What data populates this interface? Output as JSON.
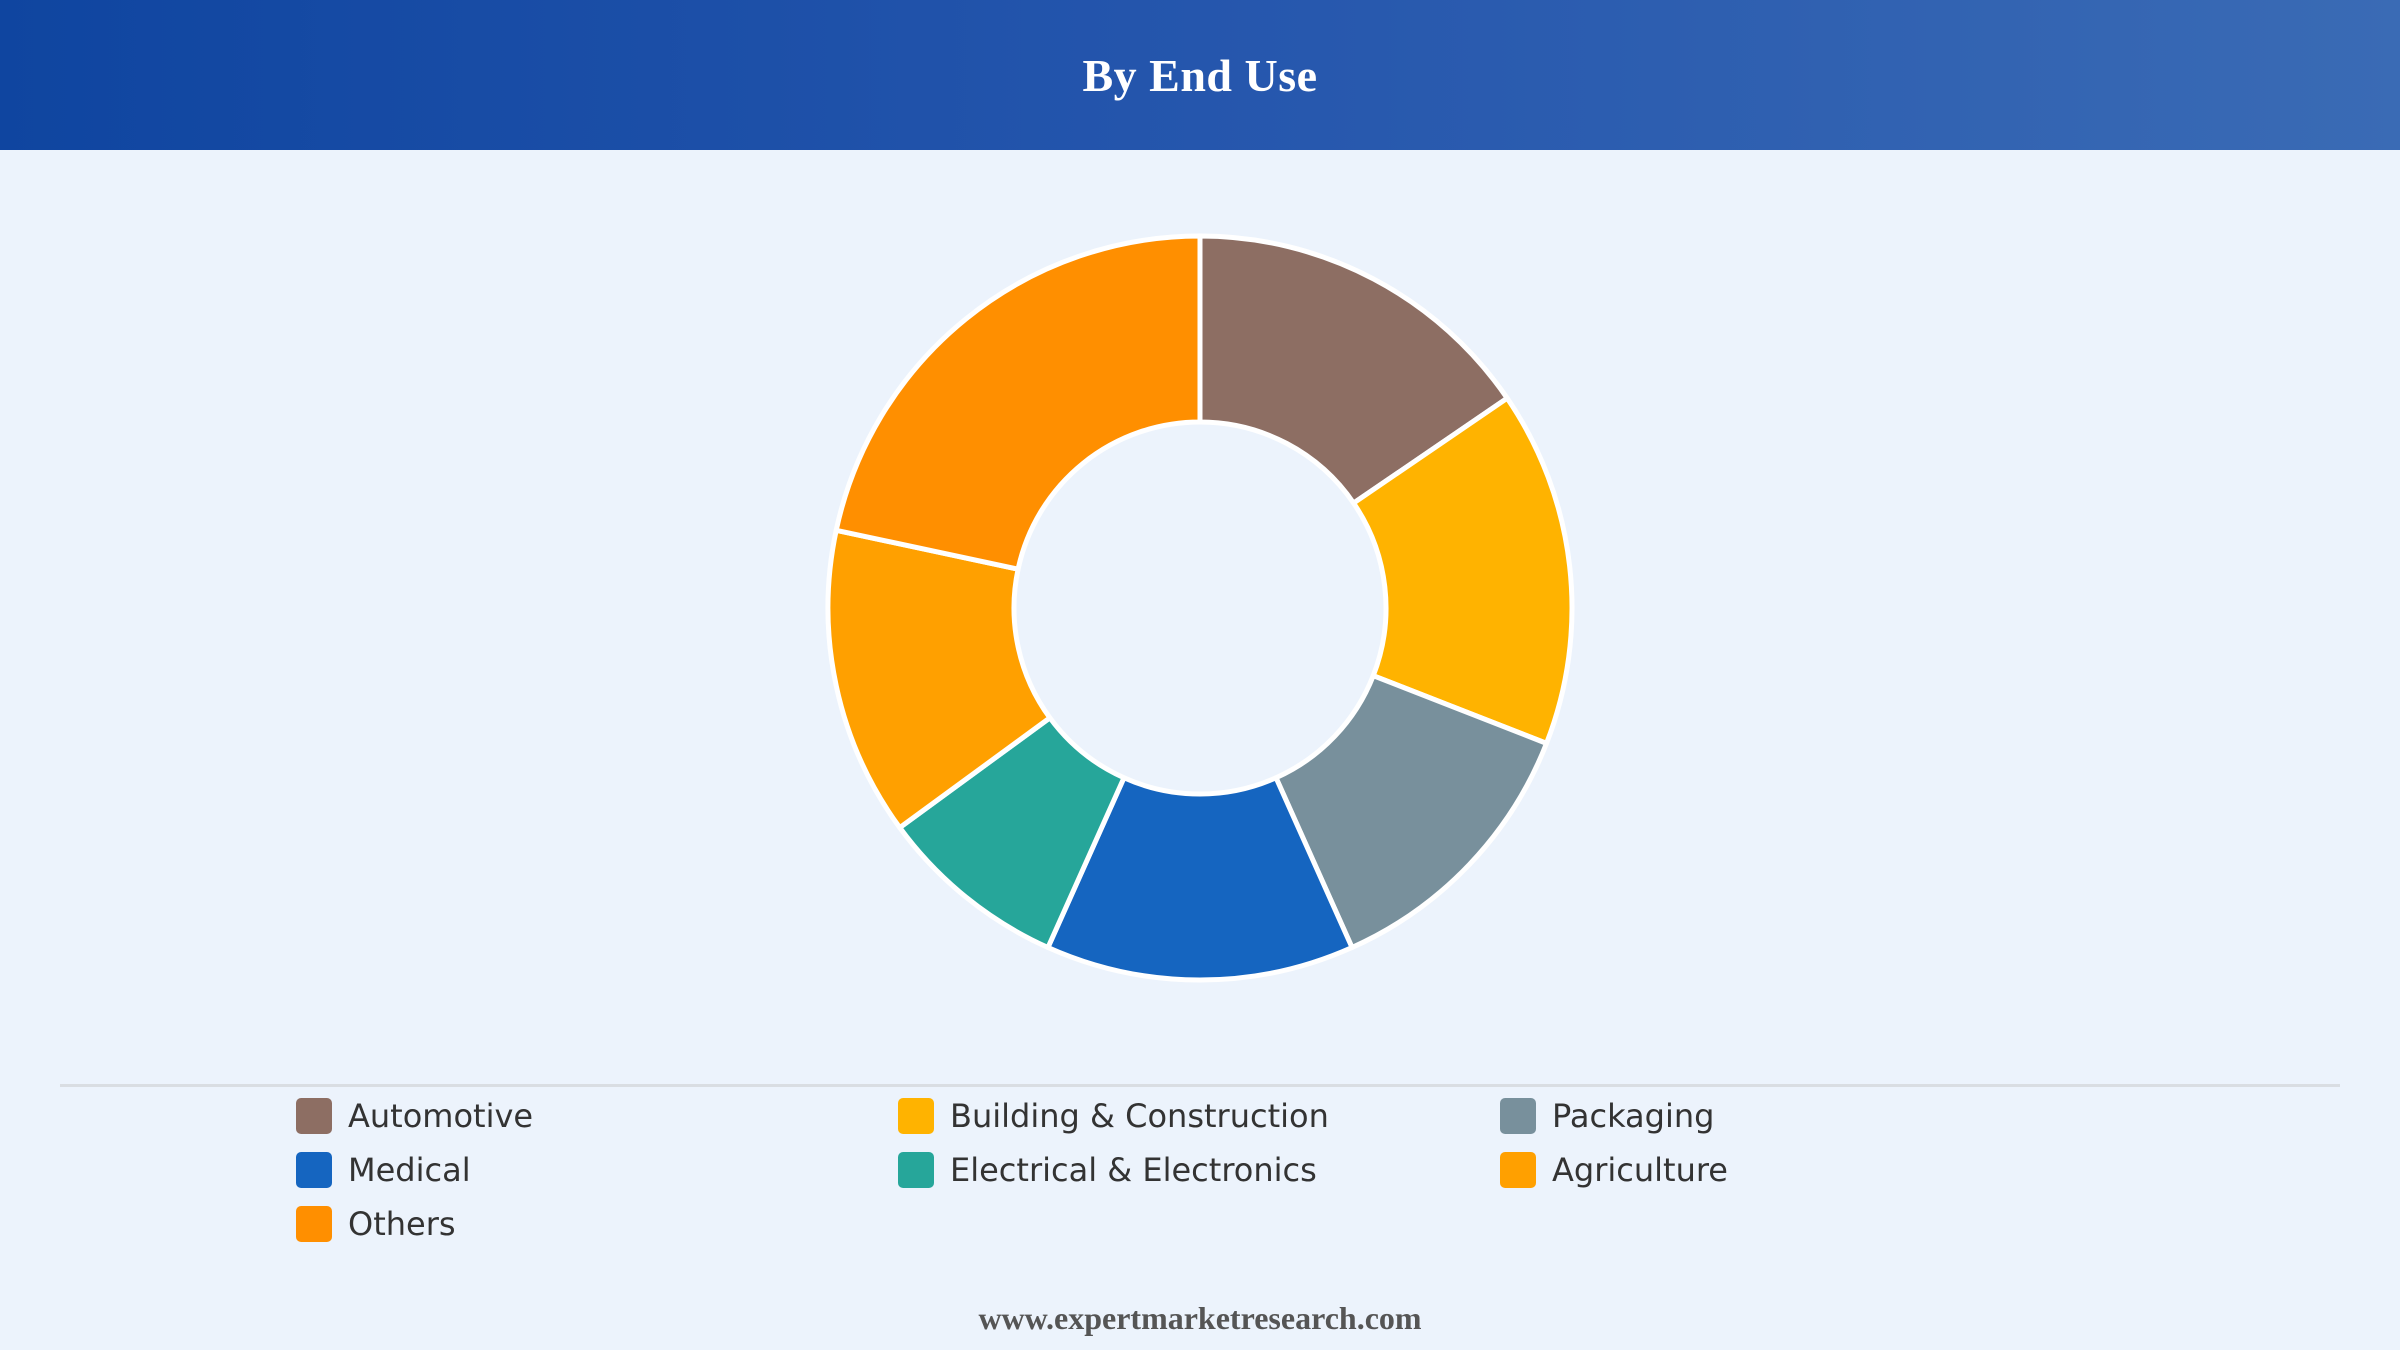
{
  "header": {
    "title": "By End Use"
  },
  "footer": {
    "url": "www.expertmarketresearch.com"
  },
  "chart_data": {
    "type": "pie",
    "style": "donut",
    "title": "By End Use",
    "legend_placement": "bottom",
    "categories": [
      "Automotive",
      "Building & Construction",
      "Packaging",
      "Medical",
      "Electrical & Electronics",
      "Agriculture",
      "Others"
    ],
    "values": [
      15,
      15,
      12,
      13,
      8,
      13,
      21
    ],
    "unit": "%",
    "colors": [
      "#8d6e63",
      "#ffb300",
      "#78909c",
      "#1565c0",
      "#26a69a",
      "#ffa000",
      "#ff8f00"
    ]
  }
}
